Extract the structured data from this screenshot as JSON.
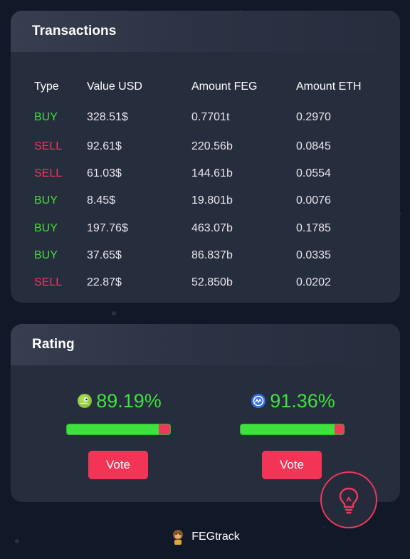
{
  "transactions": {
    "title": "Transactions",
    "columns": [
      "Type",
      "Value USD",
      "Amount FEG",
      "Amount ETH"
    ],
    "rows": [
      {
        "type": "BUY",
        "value_usd": "328.51$",
        "amount_feg": "0.7701t",
        "amount_eth": "0.2970"
      },
      {
        "type": "SELL",
        "value_usd": "92.61$",
        "amount_feg": "220.56b",
        "amount_eth": "0.0845"
      },
      {
        "type": "SELL",
        "value_usd": "61.03$",
        "amount_feg": "144.61b",
        "amount_eth": "0.0554"
      },
      {
        "type": "BUY",
        "value_usd": "8.45$",
        "amount_feg": "19.801b",
        "amount_eth": "0.0076"
      },
      {
        "type": "BUY",
        "value_usd": "197.76$",
        "amount_feg": "463.07b",
        "amount_eth": "0.1785"
      },
      {
        "type": "BUY",
        "value_usd": "37.65$",
        "amount_feg": "86.837b",
        "amount_eth": "0.0335"
      },
      {
        "type": "SELL",
        "value_usd": "22.87$",
        "amount_feg": "52.850b",
        "amount_eth": "0.0202"
      }
    ]
  },
  "rating": {
    "title": "Rating",
    "items": [
      {
        "icon": "coingecko-icon",
        "percent": "89.19%",
        "fraction": 0.8919,
        "vote_label": "Vote"
      },
      {
        "icon": "coinmarketcap-icon",
        "percent": "91.36%",
        "fraction": 0.9136,
        "vote_label": "Vote"
      }
    ]
  },
  "fab": {
    "icon": "lightbulb-icon"
  },
  "footer": {
    "label": "FEGtrack",
    "icon": "monkey-logo-icon"
  },
  "colors": {
    "background": "#111827",
    "card": "#262d3d",
    "buy": "#46dc3c",
    "sell": "#f0385c",
    "accent": "#f23557",
    "rating_green": "#3fe13e"
  }
}
